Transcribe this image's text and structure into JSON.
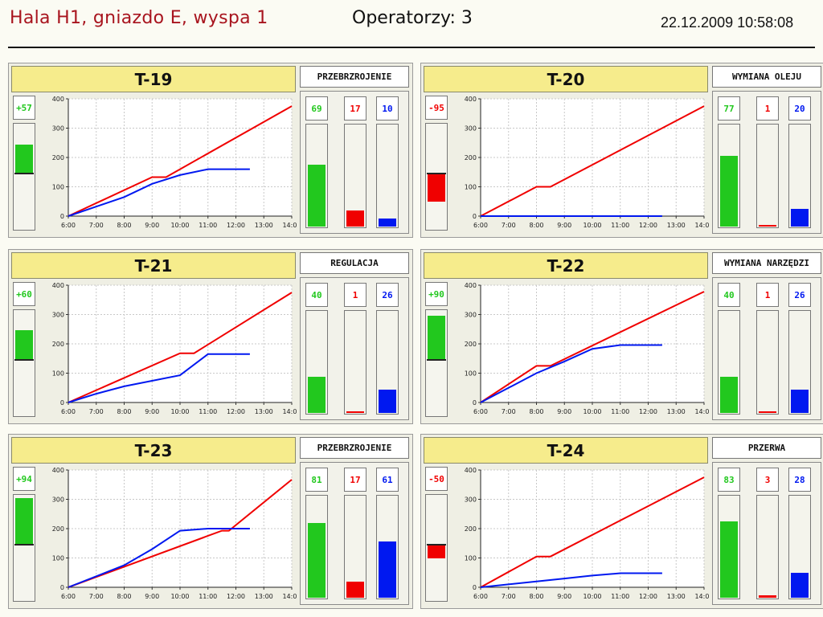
{
  "header": {
    "title": "Hala H1, gniazdo E, wyspa 1",
    "operators": "Operatorzy: 3",
    "datetime": "22.12.2009 10:58:08"
  },
  "colors": {
    "green": "#22c81e",
    "red": "#f00000",
    "blue": "#0018f0",
    "title_bg": "#f6ec8c"
  },
  "chart_axes": {
    "x_ticks": [
      "6:00",
      "7:00",
      "8:00",
      "9:00",
      "10:00",
      "11:00",
      "12:00",
      "13:00",
      "14:00"
    ],
    "y_ticks": [
      "0",
      "100",
      "200",
      "300",
      "400"
    ],
    "ylim": [
      0,
      400
    ]
  },
  "panels": [
    {
      "name": "T-19",
      "state": "PRZEBRZROJENIE",
      "delta": "+57",
      "delta_level": 0.6,
      "delta_negative": false,
      "counters": [
        {
          "value": "69",
          "level": 0.66
        },
        {
          "value": "17",
          "level": 0.17
        },
        {
          "value": "10",
          "level": 0.09
        }
      ],
      "plan": [
        [
          "6:00",
          0
        ],
        [
          "9:00",
          133
        ],
        [
          "9:30",
          133
        ],
        [
          "14:00",
          375
        ]
      ],
      "actual": [
        [
          "6:00",
          0
        ],
        [
          "8:00",
          65
        ],
        [
          "9:00",
          110
        ],
        [
          "10:00",
          140
        ],
        [
          "11:00",
          160
        ],
        [
          "12:30",
          160
        ]
      ]
    },
    {
      "name": "T-20",
      "state": "WYMIANA OLEJU",
      "delta": "-95",
      "delta_level": 0.58,
      "delta_negative": true,
      "counters": [
        {
          "value": "77",
          "level": 0.76
        },
        {
          "value": "1",
          "level": 0.01
        },
        {
          "value": "20",
          "level": 0.19
        }
      ],
      "plan": [
        [
          "6:00",
          0
        ],
        [
          "8:00",
          100
        ],
        [
          "8:30",
          100
        ],
        [
          "14:00",
          375
        ]
      ],
      "actual": [
        [
          "6:00",
          0
        ],
        [
          "12:30",
          0
        ]
      ]
    },
    {
      "name": "T-21",
      "state": "REGULACJA",
      "delta": "+60",
      "delta_level": 0.62,
      "delta_negative": false,
      "counters": [
        {
          "value": "40",
          "level": 0.39
        },
        {
          "value": "1",
          "level": 0.01
        },
        {
          "value": "26",
          "level": 0.25
        }
      ],
      "plan": [
        [
          "6:00",
          0
        ],
        [
          "10:00",
          168
        ],
        [
          "10:30",
          168
        ],
        [
          "14:00",
          375
        ]
      ],
      "actual": [
        [
          "6:00",
          0
        ],
        [
          "7:00",
          30
        ],
        [
          "8:00",
          55
        ],
        [
          "10:00",
          93
        ],
        [
          "11:00",
          165
        ],
        [
          "12:30",
          165
        ]
      ]
    },
    {
      "name": "T-22",
      "state": "WYMIANA NARZĘDZI",
      "delta": "+90",
      "delta_level": 0.92,
      "delta_negative": false,
      "counters": [
        {
          "value": "40",
          "level": 0.39
        },
        {
          "value": "1",
          "level": 0.01
        },
        {
          "value": "26",
          "level": 0.25
        }
      ],
      "plan": [
        [
          "6:00",
          0
        ],
        [
          "8:00",
          125
        ],
        [
          "8:30",
          125
        ],
        [
          "14:00",
          378
        ]
      ],
      "actual": [
        [
          "6:00",
          0
        ],
        [
          "8:00",
          100
        ],
        [
          "9:00",
          140
        ],
        [
          "10:00",
          183
        ],
        [
          "11:00",
          196
        ],
        [
          "12:30",
          196
        ]
      ]
    },
    {
      "name": "T-23",
      "state": "PRZEBRZROJENIE",
      "delta": "+94",
      "delta_level": 0.96,
      "delta_negative": false,
      "counters": [
        {
          "value": "81",
          "level": 0.8
        },
        {
          "value": "17",
          "level": 0.17
        },
        {
          "value": "61",
          "level": 0.6
        }
      ],
      "plan": [
        [
          "6:00",
          0
        ],
        [
          "11:30",
          193
        ],
        [
          "11:45",
          193
        ],
        [
          "14:00",
          367
        ]
      ],
      "actual": [
        [
          "6:00",
          0
        ],
        [
          "8:00",
          75
        ],
        [
          "9:00",
          130
        ],
        [
          "10:00",
          193
        ],
        [
          "11:00",
          200
        ],
        [
          "12:30",
          200
        ]
      ]
    },
    {
      "name": "T-24",
      "state": "PRZERWA",
      "delta": "-50",
      "delta_level": 0.28,
      "delta_negative": true,
      "counters": [
        {
          "value": "83",
          "level": 0.82
        },
        {
          "value": "3",
          "level": 0.03
        },
        {
          "value": "28",
          "level": 0.27
        }
      ],
      "plan": [
        [
          "6:00",
          0
        ],
        [
          "8:00",
          105
        ],
        [
          "8:30",
          105
        ],
        [
          "14:00",
          375
        ]
      ],
      "actual": [
        [
          "6:00",
          0
        ],
        [
          "8:00",
          20
        ],
        [
          "9:00",
          30
        ],
        [
          "10:00",
          40
        ],
        [
          "11:00",
          48
        ],
        [
          "12:30",
          48
        ]
      ]
    }
  ]
}
